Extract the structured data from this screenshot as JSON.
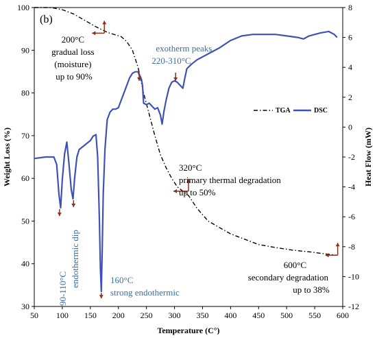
{
  "chart_data": {
    "type": "line",
    "panel_label": "(b)",
    "xlabel": "Temperature (C°)",
    "ylabel_left": "Weight Loss (%)",
    "ylabel_right": "Heat Flow (mW)",
    "xlim": [
      50,
      600
    ],
    "ylim_left": [
      30,
      100
    ],
    "ylim_right": [
      -12,
      8
    ],
    "x_ticks": [
      50,
      100,
      150,
      200,
      250,
      300,
      350,
      400,
      450,
      500,
      550,
      600
    ],
    "y_left_ticks": [
      30,
      40,
      50,
      60,
      70,
      80,
      90,
      100
    ],
    "y_right_ticks": [
      -12,
      -10,
      -8,
      -6,
      -4,
      -2,
      0,
      2,
      4,
      6,
      8
    ],
    "grid": false,
    "legend_position": "right-middle",
    "series": [
      {
        "name": "TGA",
        "axis": "left",
        "style": "dash-dot",
        "color": "#000000",
        "x": [
          50,
          80,
          100,
          120,
          140,
          160,
          180,
          195,
          205,
          215,
          225,
          235,
          245,
          255,
          265,
          275,
          285,
          295,
          305,
          315,
          325,
          340,
          360,
          380,
          400,
          420,
          450,
          480,
          510,
          540,
          570,
          590
        ],
        "y": [
          100,
          100,
          99.5,
          98.5,
          97,
          95.5,
          94.2,
          93.6,
          93.2,
          92,
          90,
          86,
          80,
          75,
          70,
          65.5,
          62.5,
          60,
          58,
          57,
          56,
          53,
          50,
          48.5,
          47,
          46,
          44.5,
          43.8,
          43.2,
          42.8,
          42.3,
          42
        ]
      },
      {
        "name": "DSC",
        "axis": "right",
        "style": "solid",
        "color": "#3F51B5",
        "x": [
          50,
          70,
          85,
          90,
          94,
          97,
          100,
          104,
          108,
          112,
          116,
          119,
          122,
          126,
          130,
          140,
          150,
          155,
          160,
          163,
          166,
          168,
          169.5,
          171,
          173,
          176,
          180,
          185,
          190,
          195,
          200,
          205,
          210,
          215,
          220,
          225,
          230,
          235,
          237,
          239,
          241,
          243,
          245,
          250,
          255,
          260,
          265,
          270,
          275,
          278,
          281,
          285,
          290,
          295,
          300,
          305,
          310,
          315,
          318,
          322,
          330,
          340,
          360,
          380,
          400,
          420,
          440,
          460,
          480,
          500,
          520,
          530,
          540,
          560,
          575,
          585,
          590
        ],
        "y": [
          -2.1,
          -2.0,
          -2.0,
          -2.5,
          -4.5,
          -5.4,
          -3.5,
          -1.8,
          -1.0,
          -2.5,
          -4.2,
          -4.8,
          -3.4,
          -2.0,
          -1.5,
          -1.2,
          -0.9,
          -0.6,
          -0.5,
          -2.0,
          -6.0,
          -9.5,
          -11.0,
          -8.5,
          -4.5,
          -1.5,
          0.5,
          1.0,
          1.2,
          1.2,
          1.3,
          1.8,
          2.3,
          2.8,
          3.3,
          3.6,
          3.7,
          3.7,
          3.5,
          3.4,
          3.2,
          2.8,
          1.6,
          1.5,
          1.6,
          1.4,
          1.2,
          1.3,
          0.8,
          0.2,
          1.0,
          1.8,
          2.6,
          3.0,
          3.1,
          3.0,
          2.8,
          2.6,
          3.2,
          3.9,
          4.2,
          4.5,
          4.9,
          5.3,
          5.8,
          6.1,
          6.2,
          6.2,
          6.2,
          6.1,
          6.0,
          5.9,
          6.1,
          6.3,
          6.4,
          6.2,
          6.0
        ]
      }
    ],
    "annotations": [
      {
        "lines": [
          "200°C",
          "gradual loss",
          "(moisture)",
          "up to 90%"
        ],
        "color": "#000000"
      },
      {
        "lines": [
          "exotherm peaks",
          "220-310°C"
        ],
        "color": "#3A6EA5"
      },
      {
        "lines": [
          "320°C",
          "primary thermal degradation",
          "up to 50%"
        ],
        "color": "#000000"
      },
      {
        "lines": [
          "600°C",
          "secondary degradation",
          "up to 38%"
        ],
        "color": "#000000"
      },
      {
        "lines": [
          "90-110°C",
          "endothermic dip"
        ],
        "color": "#3A6EA5",
        "rotated": true
      },
      {
        "lines": [
          "160°C",
          "strong endothermic"
        ],
        "color": "#3A6EA5"
      }
    ]
  }
}
